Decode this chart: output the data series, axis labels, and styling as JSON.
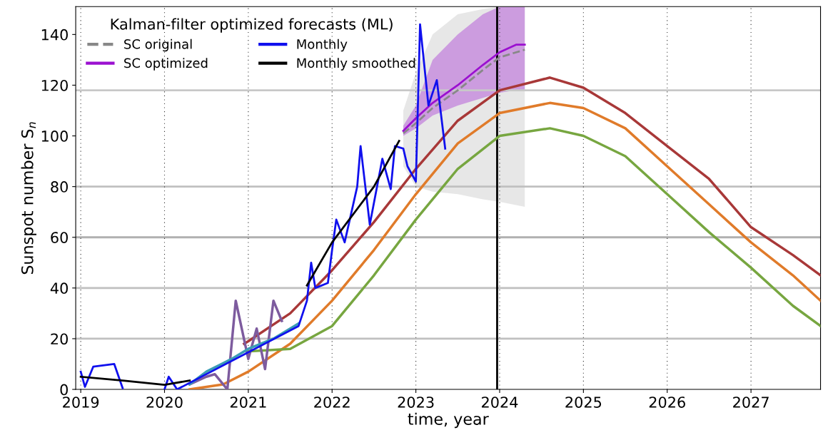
{
  "chart_data": {
    "type": "line",
    "xlabel": "time, year",
    "ylabel": "Sunspot number S$_{n}$",
    "legend_title": "Kalman-filter optimized forecasts (ML)",
    "xlim": [
      2018.94,
      2027.83
    ],
    "xticks": [
      2019,
      2020,
      2021,
      2022,
      2023,
      2024,
      2025,
      2026,
      2027
    ],
    "ylim": [
      0,
      151
    ],
    "yticks": [
      0,
      20,
      40,
      60,
      80,
      100,
      120,
      140
    ],
    "grid": "x",
    "legend": "top left",
    "series": [
      {
        "name": "SC original",
        "color": "#888888",
        "line_style": "dashed",
        "x": [
          2022.85,
          2023.0,
          2023.2,
          2023.5,
          2023.8,
          2024.0,
          2024.3
        ],
        "values": [
          101,
          105,
          111,
          118,
          126,
          131,
          134
        ],
        "lower": [
          88,
          80,
          78,
          77,
          75,
          74,
          72
        ],
        "upper": [
          110,
          125,
          140,
          148,
          150,
          151,
          151
        ]
      },
      {
        "name": "SC optimized",
        "color": "#9b10d0",
        "x": [
          2022.85,
          2023.0,
          2023.2,
          2023.5,
          2023.8,
          2024.0,
          2024.2,
          2024.3
        ],
        "values": [
          102,
          107,
          113,
          120,
          128,
          133,
          136,
          136
        ],
        "lower": [
          100,
          103,
          108,
          112,
          115,
          117,
          118,
          118
        ],
        "upper": [
          104,
          112,
          130,
          140,
          148,
          151,
          151,
          151
        ]
      },
      {
        "color": "#a83838",
        "x": [
          2020.95,
          2021.0,
          2021.5,
          2022.0,
          2022.5,
          2023.0,
          2023.5,
          2024.0,
          2024.6,
          2025.0,
          2025.5,
          2026.0,
          2026.5,
          2027.0,
          2027.5,
          2027.83
        ],
        "values": [
          18,
          19,
          30,
          47,
          66,
          87,
          106,
          118,
          123,
          119,
          109,
          96,
          83,
          64,
          53,
          45
        ]
      },
      {
        "color": "#e07b2a",
        "x": [
          2020.3,
          2020.7,
          2021.0,
          2021.5,
          2022.0,
          2022.5,
          2023.0,
          2023.5,
          2024.0,
          2024.6,
          2025.0,
          2025.5,
          2026.0,
          2026.5,
          2027.0,
          2027.5,
          2027.83
        ],
        "values": [
          0,
          2,
          7,
          18,
          35,
          55,
          77,
          97,
          109,
          113,
          111,
          103,
          88,
          73,
          58,
          45,
          35
        ]
      },
      {
        "color": "#77a640",
        "x": [
          2021.0,
          2021.5,
          2022.0,
          2022.5,
          2023.0,
          2023.5,
          2024.0,
          2024.6,
          2025.0,
          2025.5,
          2026.0,
          2026.5,
          2027.0,
          2027.5,
          2027.83
        ],
        "values": [
          15,
          16,
          25,
          45,
          67,
          87,
          100,
          103,
          100,
          92,
          77,
          62,
          48,
          33,
          25
        ]
      },
      {
        "color": "#7d5b9e",
        "x": [
          2020.3,
          2020.5,
          2020.6,
          2020.75,
          2020.85,
          2021.0,
          2021.1,
          2021.2,
          2021.3,
          2021.4
        ],
        "values": [
          2,
          5,
          6,
          0,
          35,
          12,
          24,
          8,
          35,
          27
        ]
      },
      {
        "color": "#3a9db5",
        "x": [
          2020.3,
          2020.5,
          2020.8,
          2021.0,
          2021.3,
          2021.6
        ],
        "values": [
          2,
          7,
          12,
          16,
          20,
          26
        ]
      },
      {
        "name": "Monthly",
        "color": "#1010ee",
        "x": [
          2019.0,
          2019.05,
          2019.15,
          2019.4,
          2019.5,
          2019.6,
          2020.0,
          2020.05,
          2020.15,
          2021.6,
          2021.7,
          2021.75,
          2021.8,
          2021.95,
          2022.0,
          2022.05,
          2022.15,
          2022.3,
          2022.34,
          2022.45,
          2022.6,
          2022.7,
          2022.75,
          2022.85,
          2022.9,
          2023.0,
          2023.05,
          2023.15,
          2023.25,
          2023.35
        ],
        "values": [
          7,
          1,
          9,
          10,
          0.5,
          null,
          0,
          5,
          0,
          25,
          35,
          50,
          40,
          42,
          55,
          67,
          58,
          80,
          96,
          65,
          91,
          79,
          96,
          95,
          88,
          82,
          144,
          112,
          122,
          95
        ]
      },
      {
        "name": "Monthly smoothed",
        "color": "#000000",
        "x": [
          2019.0,
          2019.5,
          2020.0,
          2020.3,
          2020.4,
          2021.7,
          2022.0,
          2022.5,
          2022.8
        ],
        "values": [
          5,
          3.5,
          1.8,
          3.5,
          null,
          41,
          58,
          80,
          98
        ]
      }
    ],
    "ref_lines": [
      {
        "axis": "y",
        "value": 20,
        "color": "#c0c0c0"
      },
      {
        "axis": "y",
        "value": 40,
        "color": "#c0c0c0"
      },
      {
        "axis": "y",
        "value": 60,
        "color": "#b0b0b0"
      },
      {
        "axis": "y",
        "value": 80,
        "color": "#c0c0c0"
      },
      {
        "axis": "y",
        "value": 118,
        "color": "#c8c8c8"
      },
      {
        "axis": "x",
        "value": 2023.97,
        "color": "#000000"
      }
    ]
  }
}
